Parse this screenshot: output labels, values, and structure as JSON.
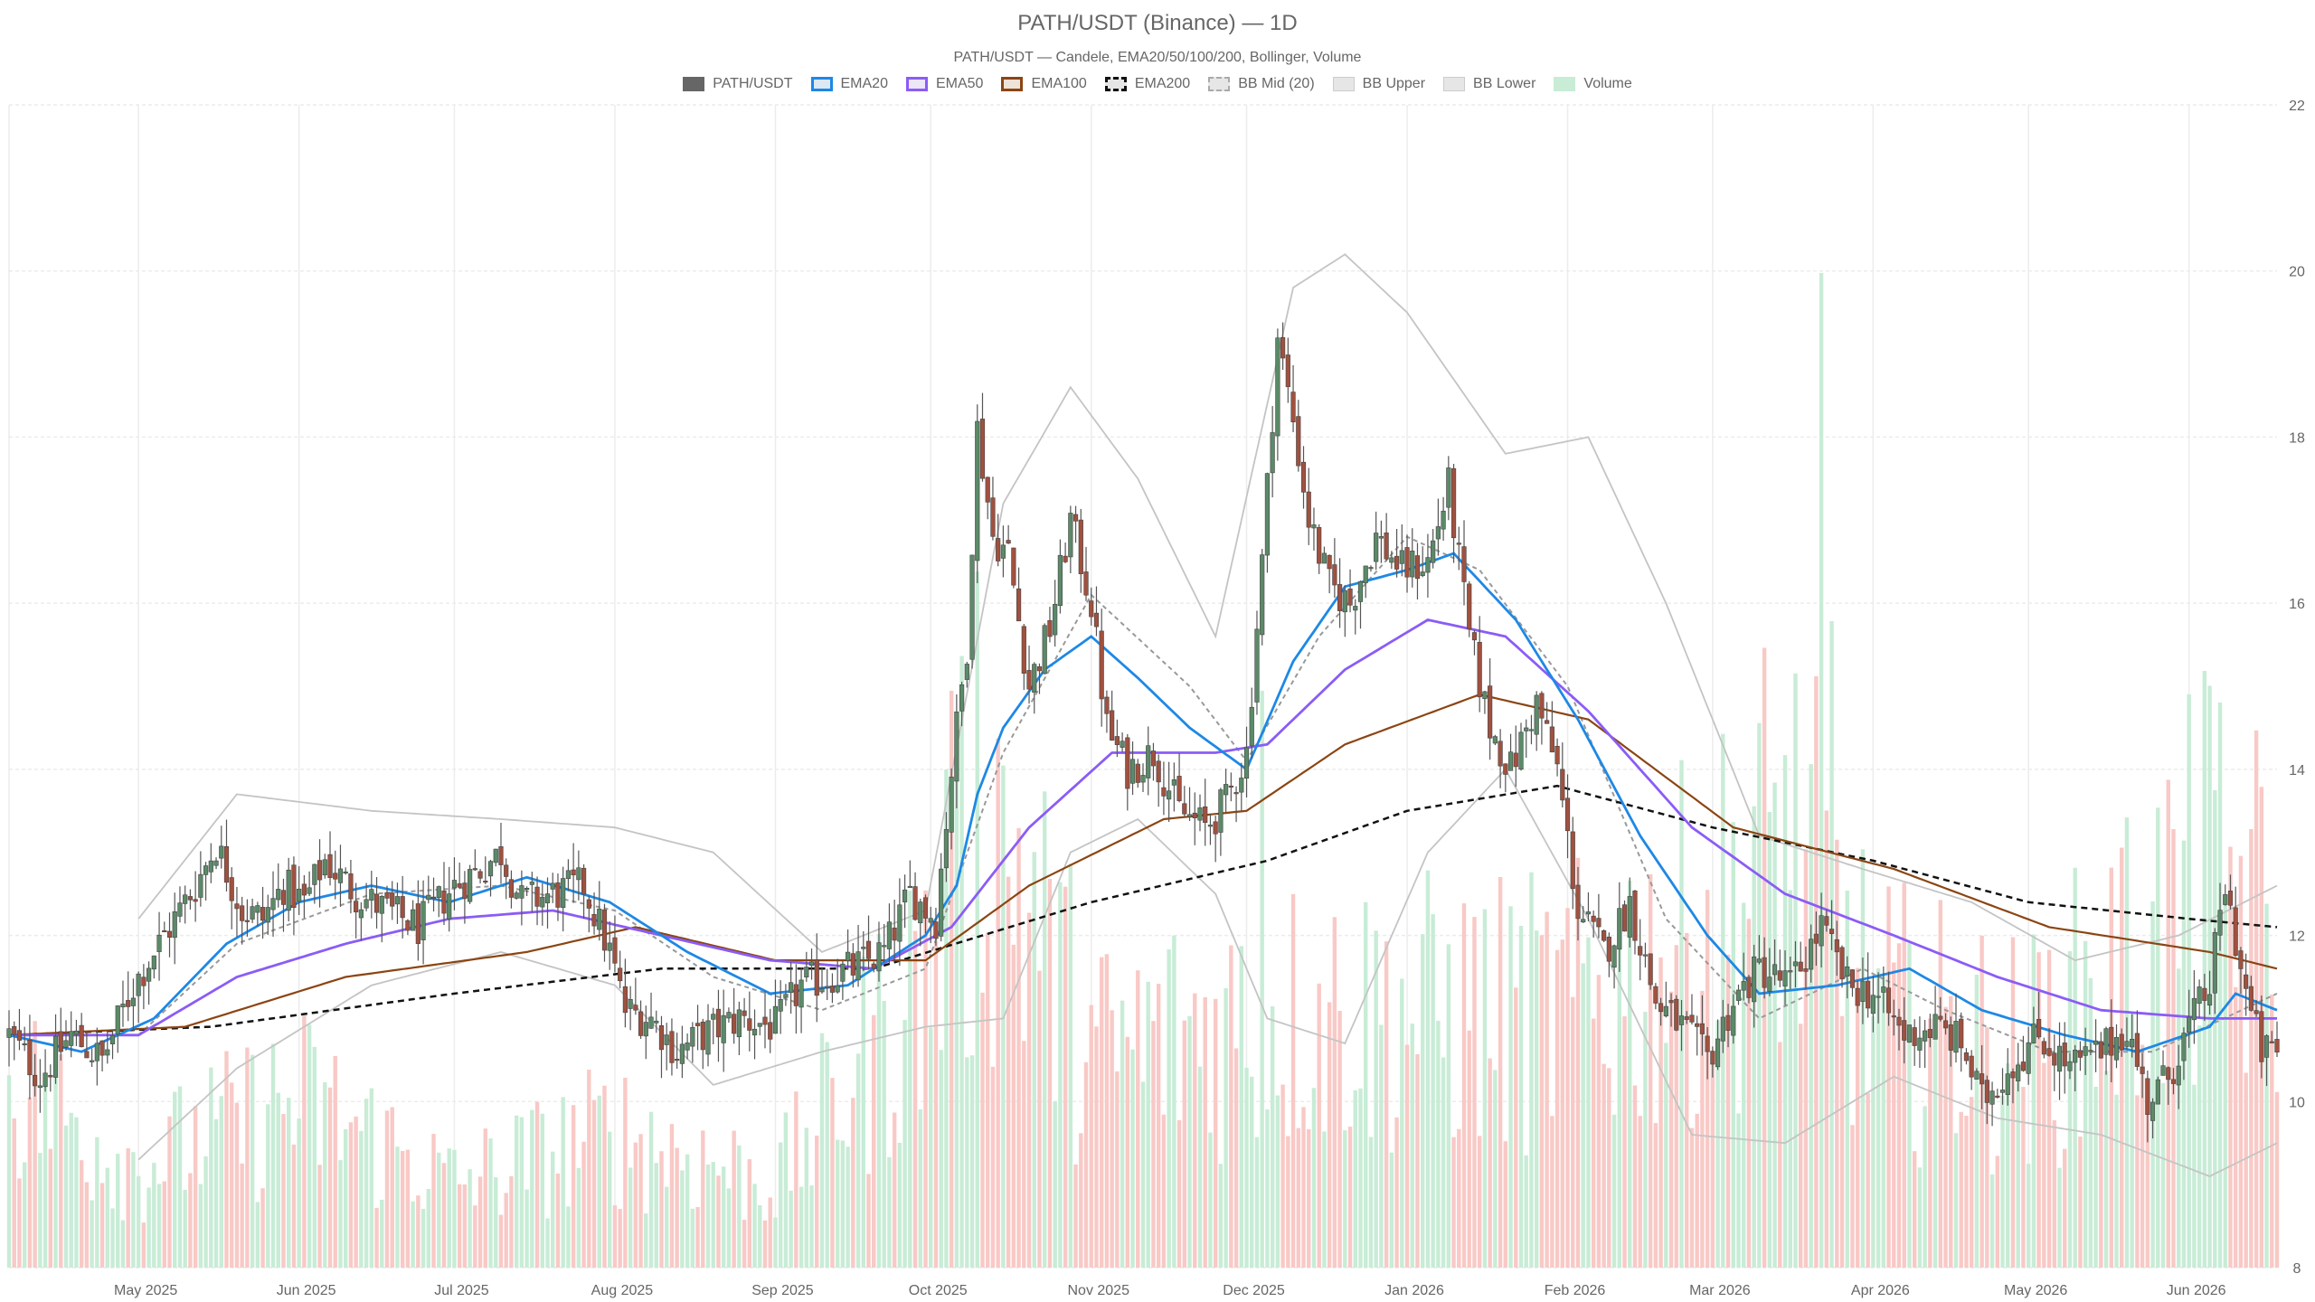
{
  "chart_data": {
    "type": "candlestick",
    "title": "PATH/USDT (Binance) — 1D",
    "subtitle": "PATH/USDT — Candele, EMA20/50/100/200, Bollinger, Volume",
    "ylim": [
      8,
      22
    ],
    "y_ticks": [
      8,
      10,
      12,
      14,
      16,
      18,
      20,
      22
    ],
    "y_axis_position": "right",
    "x_range": [
      "2025-04-06",
      "2026-06-18"
    ],
    "x_ticks": [
      {
        "date": "2025-05-01",
        "label": "May 2025"
      },
      {
        "date": "2025-06-01",
        "label": "Jun 2025"
      },
      {
        "date": "2025-07-01",
        "label": "Jul 2025"
      },
      {
        "date": "2025-08-01",
        "label": "Aug 2025"
      },
      {
        "date": "2025-09-01",
        "label": "Sep 2025"
      },
      {
        "date": "2025-10-01",
        "label": "Oct 2025"
      },
      {
        "date": "2025-11-01",
        "label": "Nov 2025"
      },
      {
        "date": "2025-12-01",
        "label": "Dec 2025"
      },
      {
        "date": "2026-01-01",
        "label": "Jan 2026"
      },
      {
        "date": "2026-02-01",
        "label": "Feb 2026"
      },
      {
        "date": "2026-03-01",
        "label": "Mar 2026"
      },
      {
        "date": "2026-04-01",
        "label": "Apr 2026"
      },
      {
        "date": "2026-05-01",
        "label": "May 2026"
      },
      {
        "date": "2026-06-01",
        "label": "Jun 2026"
      }
    ],
    "grid": true,
    "legend_position": "top-center",
    "colors": {
      "up": "#5b8a68",
      "down": "#a0513f",
      "volume_up": "#c8ecd6",
      "volume_down": "#f8c9c6",
      "ema20": "#1e88e5",
      "ema50": "#8b5cf6",
      "ema100": "#8b4513",
      "ema200": "#111111",
      "bb_mid": "#999999",
      "bb_band": "#c4c4c4"
    },
    "legend": [
      {
        "label": "PATH/USDT",
        "key": "candles"
      },
      {
        "label": "EMA20",
        "key": "ema20"
      },
      {
        "label": "EMA50",
        "key": "ema50"
      },
      {
        "label": "EMA100",
        "key": "ema100"
      },
      {
        "label": "EMA200",
        "key": "ema200"
      },
      {
        "label": "BB Mid (20)",
        "key": "bb_mid"
      },
      {
        "label": "BB Upper",
        "key": "bb_upper"
      },
      {
        "label": "BB Lower",
        "key": "bb_lower"
      },
      {
        "label": "Volume",
        "key": "volume"
      }
    ],
    "close_path": [
      [
        "2025-04-06",
        10.8
      ],
      [
        "2025-04-12",
        10.3
      ],
      [
        "2025-04-18",
        10.8
      ],
      [
        "2025-04-24",
        10.5
      ],
      [
        "2025-04-30",
        11.4
      ],
      [
        "2025-05-06",
        12.0
      ],
      [
        "2025-05-12",
        12.6
      ],
      [
        "2025-05-16",
        13.1
      ],
      [
        "2025-05-21",
        12.3
      ],
      [
        "2025-05-25",
        12.2
      ],
      [
        "2025-05-29",
        12.6
      ],
      [
        "2025-06-02",
        12.4
      ],
      [
        "2025-06-06",
        12.9
      ],
      [
        "2025-06-12",
        12.5
      ],
      [
        "2025-06-18",
        12.3
      ],
      [
        "2025-06-24",
        12.1
      ],
      [
        "2025-07-01",
        12.6
      ],
      [
        "2025-07-06",
        12.8
      ],
      [
        "2025-07-10",
        13.0
      ],
      [
        "2025-07-14",
        12.4
      ],
      [
        "2025-07-20",
        12.5
      ],
      [
        "2025-07-26",
        12.6
      ],
      [
        "2025-07-31",
        11.8
      ],
      [
        "2025-08-03",
        11.1
      ],
      [
        "2025-08-08",
        11.0
      ],
      [
        "2025-08-13",
        10.6
      ],
      [
        "2025-08-18",
        10.8
      ],
      [
        "2025-08-25",
        11.0
      ],
      [
        "2025-09-01",
        10.9
      ],
      [
        "2025-09-06",
        11.4
      ],
      [
        "2025-09-11",
        11.5
      ],
      [
        "2025-09-16",
        11.6
      ],
      [
        "2025-09-22",
        11.8
      ],
      [
        "2025-09-27",
        12.5
      ],
      [
        "2025-10-02",
        12.2
      ],
      [
        "2025-10-05",
        14.0
      ],
      [
        "2025-10-08",
        15.5
      ],
      [
        "2025-10-10",
        18.1
      ],
      [
        "2025-10-13",
        16.8
      ],
      [
        "2025-10-16",
        16.6
      ],
      [
        "2025-10-20",
        15.0
      ],
      [
        "2025-10-24",
        15.7
      ],
      [
        "2025-10-28",
        17.0
      ],
      [
        "2025-11-01",
        16.0
      ],
      [
        "2025-11-04",
        14.5
      ],
      [
        "2025-11-08",
        14.0
      ],
      [
        "2025-11-13",
        14.2
      ],
      [
        "2025-11-18",
        13.5
      ],
      [
        "2025-11-23",
        13.3
      ],
      [
        "2025-11-27",
        13.6
      ],
      [
        "2025-12-01",
        14.2
      ],
      [
        "2025-12-04",
        16.5
      ],
      [
        "2025-12-07",
        19.2
      ],
      [
        "2025-12-10",
        18.2
      ],
      [
        "2025-12-13",
        17.0
      ],
      [
        "2025-12-17",
        16.2
      ],
      [
        "2025-12-21",
        16.0
      ],
      [
        "2025-12-26",
        16.8
      ],
      [
        "2025-12-31",
        16.4
      ],
      [
        "2026-01-05",
        16.5
      ],
      [
        "2026-01-09",
        17.4
      ],
      [
        "2026-01-13",
        15.6
      ],
      [
        "2026-01-17",
        14.5
      ],
      [
        "2026-01-21",
        14.0
      ],
      [
        "2026-01-26",
        14.8
      ],
      [
        "2026-01-30",
        14.0
      ],
      [
        "2026-02-03",
        12.3
      ],
      [
        "2026-02-08",
        11.8
      ],
      [
        "2026-02-13",
        12.4
      ],
      [
        "2026-02-18",
        11.2
      ],
      [
        "2026-02-23",
        10.9
      ],
      [
        "2026-02-28",
        10.5
      ],
      [
        "2026-03-05",
        11.2
      ],
      [
        "2026-03-10",
        11.6
      ],
      [
        "2026-03-16",
        11.4
      ],
      [
        "2026-03-22",
        12.1
      ],
      [
        "2026-03-27",
        11.4
      ],
      [
        "2026-04-01",
        11.3
      ],
      [
        "2026-04-07",
        10.8
      ],
      [
        "2026-04-13",
        10.9
      ],
      [
        "2026-04-18",
        10.7
      ],
      [
        "2026-04-22",
        10.0
      ],
      [
        "2026-04-27",
        10.4
      ],
      [
        "2026-05-03",
        10.8
      ],
      [
        "2026-05-09",
        10.4
      ],
      [
        "2026-05-15",
        10.6
      ],
      [
        "2026-05-20",
        10.9
      ],
      [
        "2026-05-24",
        10.0
      ],
      [
        "2026-05-28",
        10.3
      ],
      [
        "2026-06-01",
        10.9
      ],
      [
        "2026-06-05",
        11.4
      ],
      [
        "2026-06-08",
        12.6
      ],
      [
        "2026-06-12",
        11.3
      ],
      [
        "2026-06-15",
        10.6
      ],
      [
        "2026-06-18",
        10.6
      ]
    ],
    "ema20_path": [
      [
        "2025-04-06",
        10.8
      ],
      [
        "2025-04-20",
        10.6
      ],
      [
        "2025-05-04",
        11.0
      ],
      [
        "2025-05-18",
        11.9
      ],
      [
        "2025-06-01",
        12.4
      ],
      [
        "2025-06-15",
        12.6
      ],
      [
        "2025-06-30",
        12.4
      ],
      [
        "2025-07-15",
        12.7
      ],
      [
        "2025-07-31",
        12.4
      ],
      [
        "2025-08-15",
        11.8
      ],
      [
        "2025-08-31",
        11.3
      ],
      [
        "2025-09-15",
        11.4
      ],
      [
        "2025-09-30",
        12.0
      ],
      [
        "2025-10-06",
        12.6
      ],
      [
        "2025-10-10",
        13.7
      ],
      [
        "2025-10-15",
        14.5
      ],
      [
        "2025-10-23",
        15.2
      ],
      [
        "2025-11-01",
        15.6
      ],
      [
        "2025-11-10",
        15.1
      ],
      [
        "2025-11-20",
        14.5
      ],
      [
        "2025-12-01",
        14.0
      ],
      [
        "2025-12-10",
        15.3
      ],
      [
        "2025-12-20",
        16.2
      ],
      [
        "2026-01-01",
        16.4
      ],
      [
        "2026-01-10",
        16.6
      ],
      [
        "2026-01-22",
        15.8
      ],
      [
        "2026-02-03",
        14.6
      ],
      [
        "2026-02-15",
        13.2
      ],
      [
        "2026-02-28",
        12.0
      ],
      [
        "2026-03-10",
        11.3
      ],
      [
        "2026-03-25",
        11.4
      ],
      [
        "2026-04-08",
        11.6
      ],
      [
        "2026-04-22",
        11.1
      ],
      [
        "2026-05-08",
        10.8
      ],
      [
        "2026-05-22",
        10.6
      ],
      [
        "2026-06-05",
        10.9
      ],
      [
        "2026-06-10",
        11.3
      ],
      [
        "2026-06-18",
        11.1
      ]
    ],
    "ema50_path": [
      [
        "2025-04-06",
        10.8
      ],
      [
        "2025-05-01",
        10.8
      ],
      [
        "2025-05-20",
        11.5
      ],
      [
        "2025-06-10",
        11.9
      ],
      [
        "2025-06-30",
        12.2
      ],
      [
        "2025-07-20",
        12.3
      ],
      [
        "2025-08-10",
        12.0
      ],
      [
        "2025-08-31",
        11.7
      ],
      [
        "2025-09-20",
        11.6
      ],
      [
        "2025-10-05",
        12.1
      ],
      [
        "2025-10-20",
        13.3
      ],
      [
        "2025-11-05",
        14.2
      ],
      [
        "2025-11-25",
        14.2
      ],
      [
        "2025-12-05",
        14.3
      ],
      [
        "2025-12-20",
        15.2
      ],
      [
        "2026-01-05",
        15.8
      ],
      [
        "2026-01-20",
        15.6
      ],
      [
        "2026-02-05",
        14.7
      ],
      [
        "2026-02-25",
        13.3
      ],
      [
        "2026-03-15",
        12.5
      ],
      [
        "2026-04-05",
        12.0
      ],
      [
        "2026-04-25",
        11.5
      ],
      [
        "2026-05-15",
        11.1
      ],
      [
        "2026-06-05",
        11.0
      ],
      [
        "2026-06-18",
        11.0
      ]
    ],
    "ema100_path": [
      [
        "2025-04-06",
        10.8
      ],
      [
        "2025-05-10",
        10.9
      ],
      [
        "2025-06-10",
        11.5
      ],
      [
        "2025-07-15",
        11.8
      ],
      [
        "2025-08-05",
        12.1
      ],
      [
        "2025-09-01",
        11.7
      ],
      [
        "2025-09-30",
        11.7
      ],
      [
        "2025-10-20",
        12.6
      ],
      [
        "2025-11-15",
        13.4
      ],
      [
        "2025-12-01",
        13.5
      ],
      [
        "2025-12-20",
        14.3
      ],
      [
        "2026-01-15",
        14.9
      ],
      [
        "2026-02-05",
        14.6
      ],
      [
        "2026-03-05",
        13.3
      ],
      [
        "2026-04-05",
        12.8
      ],
      [
        "2026-05-05",
        12.1
      ],
      [
        "2026-06-05",
        11.8
      ],
      [
        "2026-06-18",
        11.6
      ]
    ],
    "ema200_path": [
      [
        "2025-04-06",
        10.8
      ],
      [
        "2025-05-15",
        10.9
      ],
      [
        "2025-07-01",
        11.3
      ],
      [
        "2025-08-10",
        11.6
      ],
      [
        "2025-09-20",
        11.6
      ],
      [
        "2025-11-01",
        12.4
      ],
      [
        "2025-12-05",
        12.9
      ],
      [
        "2026-01-01",
        13.5
      ],
      [
        "2026-01-30",
        13.8
      ],
      [
        "2026-03-01",
        13.3
      ],
      [
        "2026-04-01",
        12.9
      ],
      [
        "2026-05-01",
        12.4
      ],
      [
        "2026-06-01",
        12.2
      ],
      [
        "2026-06-18",
        12.1
      ]
    ],
    "bb_mid_path": [
      [
        "2025-05-01",
        10.8
      ],
      [
        "2025-05-20",
        11.9
      ],
      [
        "2025-06-15",
        12.5
      ],
      [
        "2025-07-10",
        12.6
      ],
      [
        "2025-08-01",
        12.3
      ],
      [
        "2025-08-20",
        11.5
      ],
      [
        "2025-09-10",
        11.1
      ],
      [
        "2025-09-30",
        11.6
      ],
      [
        "2025-10-15",
        14.2
      ],
      [
        "2025-11-01",
        16.1
      ],
      [
        "2025-11-20",
        15.0
      ],
      [
        "2025-12-01",
        14.1
      ],
      [
        "2025-12-15",
        15.6
      ],
      [
        "2026-01-01",
        16.8
      ],
      [
        "2026-01-15",
        16.4
      ],
      [
        "2026-02-01",
        15.0
      ],
      [
        "2026-02-20",
        12.2
      ],
      [
        "2026-03-10",
        11.0
      ],
      [
        "2026-03-30",
        11.6
      ],
      [
        "2026-04-15",
        11.1
      ],
      [
        "2026-05-05",
        10.6
      ],
      [
        "2026-05-25",
        10.6
      ],
      [
        "2026-06-18",
        11.3
      ]
    ],
    "bb_upper_path": [
      [
        "2025-05-01",
        12.2
      ],
      [
        "2025-05-20",
        13.7
      ],
      [
        "2025-06-15",
        13.5
      ],
      [
        "2025-07-10",
        13.4
      ],
      [
        "2025-08-01",
        13.3
      ],
      [
        "2025-08-20",
        13.0
      ],
      [
        "2025-09-10",
        11.8
      ],
      [
        "2025-09-30",
        12.3
      ],
      [
        "2025-10-15",
        17.2
      ],
      [
        "2025-10-28",
        18.6
      ],
      [
        "2025-11-10",
        17.5
      ],
      [
        "2025-11-25",
        15.6
      ],
      [
        "2025-12-10",
        19.8
      ],
      [
        "2025-12-20",
        20.2
      ],
      [
        "2026-01-01",
        19.5
      ],
      [
        "2026-01-20",
        17.8
      ],
      [
        "2026-02-05",
        18.0
      ],
      [
        "2026-02-20",
        16.0
      ],
      [
        "2026-03-10",
        13.2
      ],
      [
        "2026-03-30",
        12.8
      ],
      [
        "2026-04-20",
        12.4
      ],
      [
        "2026-05-10",
        11.7
      ],
      [
        "2026-05-30",
        12.0
      ],
      [
        "2026-06-18",
        12.6
      ]
    ],
    "bb_lower_path": [
      [
        "2025-05-01",
        9.3
      ],
      [
        "2025-05-20",
        10.4
      ],
      [
        "2025-06-15",
        11.4
      ],
      [
        "2025-07-10",
        11.8
      ],
      [
        "2025-08-01",
        11.4
      ],
      [
        "2025-08-20",
        10.2
      ],
      [
        "2025-09-10",
        10.6
      ],
      [
        "2025-09-30",
        10.9
      ],
      [
        "2025-10-15",
        11.0
      ],
      [
        "2025-10-28",
        13.0
      ],
      [
        "2025-11-10",
        13.4
      ],
      [
        "2025-11-25",
        12.5
      ],
      [
        "2025-12-05",
        11.0
      ],
      [
        "2025-12-20",
        10.7
      ],
      [
        "2026-01-05",
        13.0
      ],
      [
        "2026-01-20",
        14.0
      ],
      [
        "2026-02-05",
        12.2
      ],
      [
        "2026-02-25",
        9.6
      ],
      [
        "2026-03-15",
        9.5
      ],
      [
        "2026-04-05",
        10.3
      ],
      [
        "2026-04-25",
        9.8
      ],
      [
        "2026-05-15",
        9.6
      ],
      [
        "2026-06-05",
        9.1
      ],
      [
        "2026-06-18",
        9.5
      ]
    ],
    "volume_ratio_path": [
      [
        "2025-04-06",
        0.22
      ],
      [
        "2025-05-01",
        0.12
      ],
      [
        "2025-06-01",
        0.2
      ],
      [
        "2025-07-01",
        0.1
      ],
      [
        "2025-08-01",
        0.16
      ],
      [
        "2025-09-01",
        0.1
      ],
      [
        "2025-10-01",
        0.35
      ],
      [
        "2025-10-12",
        0.55
      ],
      [
        "2025-11-01",
        0.25
      ],
      [
        "2025-12-05",
        0.3
      ],
      [
        "2026-01-01",
        0.3
      ],
      [
        "2026-02-01",
        0.3
      ],
      [
        "2026-03-01",
        0.4
      ],
      [
        "2026-03-15",
        0.52
      ],
      [
        "2026-04-01",
        0.3
      ],
      [
        "2026-05-01",
        0.25
      ],
      [
        "2026-06-05",
        0.45
      ],
      [
        "2026-06-18",
        0.4
      ]
    ],
    "volume_peaks": [
      [
        "2025-06-01",
        0.15,
        "up"
      ],
      [
        "2025-10-05",
        0.58,
        "down"
      ],
      [
        "2025-10-10",
        0.7,
        "up"
      ],
      [
        "2025-12-04",
        0.58,
        "up"
      ],
      [
        "2026-03-22",
        1.0,
        "up"
      ],
      [
        "2026-03-24",
        0.65,
        "up"
      ],
      [
        "2026-06-04",
        0.6,
        "up"
      ],
      [
        "2026-06-06",
        0.48,
        "up"
      ]
    ]
  }
}
